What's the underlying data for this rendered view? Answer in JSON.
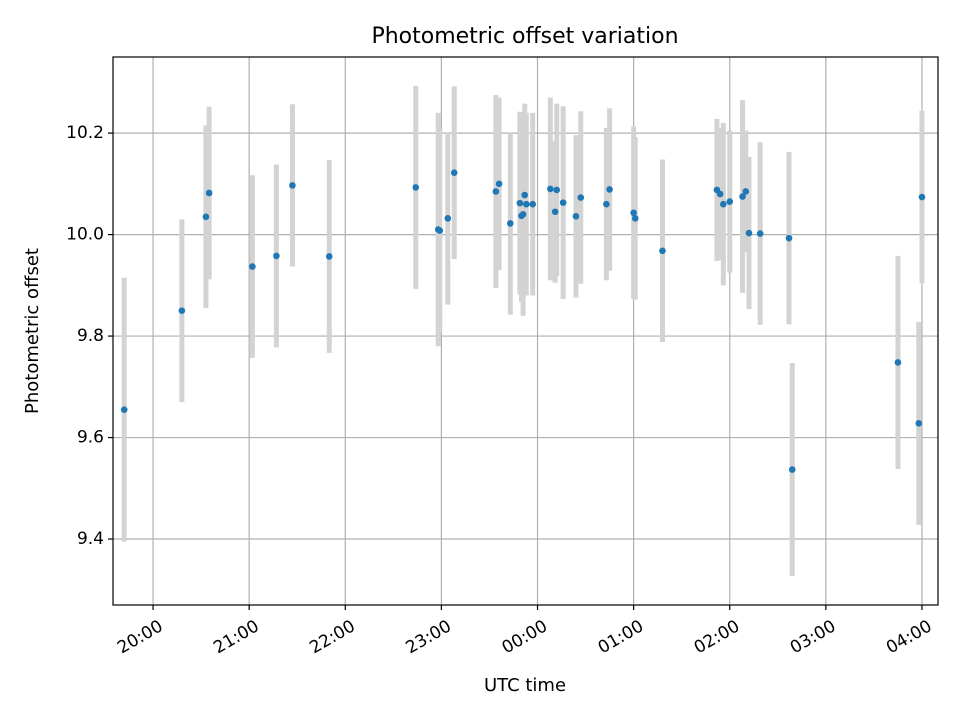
{
  "chart_data": {
    "type": "scatter",
    "title": "Photometric offset variation",
    "xlabel": "UTC time",
    "ylabel": "Photometric offset",
    "x_unit": "UTC time (HH:MM, night crossing midnight)",
    "xlim": [
      "19:35",
      "04:10"
    ],
    "ylim": [
      9.27,
      10.35
    ],
    "grid": true,
    "x_ticks": [
      "20:00",
      "21:00",
      "22:00",
      "23:00",
      "00:00",
      "01:00",
      "02:00",
      "03:00",
      "04:00"
    ],
    "y_ticks": [
      "9.4",
      "9.6",
      "9.8",
      "10.0",
      "10.2"
    ],
    "colors": {
      "marker": "#1f77b4",
      "errorbar": "#d3d3d3",
      "grid": "#b0b0b0"
    },
    "series": [
      {
        "x": [
          "19:42",
          "20:18",
          "20:33",
          "20:35",
          "21:02",
          "21:17",
          "21:27",
          "21:50",
          "22:44",
          "22:58",
          "22:59",
          "23:04",
          "23:08",
          "23:34",
          "23:36",
          "23:43",
          "23:49",
          "23:50",
          "23:51",
          "23:52",
          "23:53",
          "23:57",
          "00:08",
          "00:11",
          "00:12",
          "00:16",
          "00:24",
          "00:27",
          "00:43",
          "00:45",
          "01:00",
          "01:01",
          "01:18",
          "01:52",
          "01:54",
          "01:56",
          "02:00",
          "02:08",
          "02:10",
          "02:12",
          "02:19",
          "02:37",
          "02:39",
          "03:45",
          "03:58",
          "04:00"
        ],
        "y": [
          9.655,
          9.85,
          10.035,
          10.082,
          9.937,
          9.958,
          10.097,
          9.957,
          10.093,
          10.01,
          10.008,
          10.032,
          10.122,
          10.085,
          10.1,
          10.022,
          10.062,
          10.037,
          10.04,
          10.078,
          10.06,
          10.06,
          10.09,
          10.045,
          10.088,
          10.063,
          10.036,
          10.073,
          10.06,
          10.089,
          10.043,
          10.032,
          9.968,
          10.088,
          10.08,
          10.06,
          10.065,
          10.075,
          10.085,
          10.003,
          10.002,
          9.993,
          9.537,
          9.748,
          9.628,
          10.074
        ],
        "err": [
          0.26,
          0.18,
          0.18,
          0.17,
          0.18,
          0.18,
          0.16,
          0.19,
          0.2,
          0.23,
          0.2,
          0.17,
          0.17,
          0.19,
          0.17,
          0.18,
          0.18,
          0.17,
          0.2,
          0.18,
          0.18,
          0.18,
          0.18,
          0.14,
          0.17,
          0.19,
          0.16,
          0.17,
          0.15,
          0.16,
          0.17,
          0.16,
          0.18,
          0.14,
          0.13,
          0.16,
          0.14,
          0.19,
          0.12,
          0.15,
          0.18,
          0.17,
          0.21,
          0.21,
          0.2,
          0.17
        ]
      }
    ]
  }
}
